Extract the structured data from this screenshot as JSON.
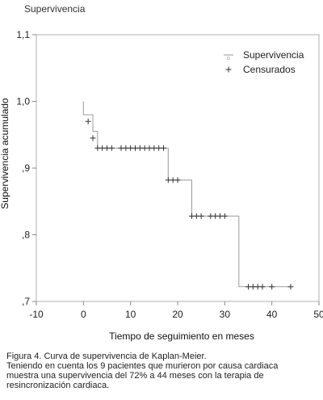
{
  "chart_data": {
    "type": "line",
    "title": "Supervivencia",
    "xlabel": "Tiempo de seguimiento en meses",
    "ylabel": "Supervivencia acumulado",
    "xlim": [
      -10,
      50
    ],
    "ylim": [
      0.7,
      1.1
    ],
    "x_ticks": [
      -10,
      0,
      10,
      20,
      30,
      40,
      50
    ],
    "x_tick_labels": [
      "-10",
      "0",
      "10",
      "20",
      "30",
      "40",
      "50"
    ],
    "y_ticks": [
      0.7,
      0.8,
      0.9,
      1.0,
      1.1
    ],
    "y_tick_labels": [
      ",7",
      ",8",
      ",9",
      "1,0",
      "1,1"
    ],
    "grid": false,
    "legend_position": "top-right",
    "series": [
      {
        "name": "Supervivencia",
        "kind": "step",
        "color": "#9a9a9a",
        "points": [
          [
            0,
            1.0
          ],
          [
            0,
            0.98
          ],
          [
            2,
            0.98
          ],
          [
            2,
            0.955
          ],
          [
            3,
            0.955
          ],
          [
            3,
            0.93
          ],
          [
            18,
            0.93
          ],
          [
            18,
            0.882
          ],
          [
            23,
            0.882
          ],
          [
            23,
            0.828
          ],
          [
            33,
            0.828
          ],
          [
            33,
            0.722
          ],
          [
            44,
            0.722
          ]
        ]
      },
      {
        "name": "Censurados",
        "kind": "marker",
        "marker": "+",
        "color": "#333333",
        "x": [
          1,
          2,
          3,
          4,
          5,
          6,
          8,
          9,
          10,
          11,
          12,
          13,
          14,
          15,
          16,
          17,
          18,
          19,
          20,
          23,
          24,
          25,
          27,
          28,
          29,
          30,
          35,
          36,
          37,
          38,
          40,
          44
        ],
        "y": [
          0.97,
          0.945,
          0.93,
          0.93,
          0.93,
          0.93,
          0.93,
          0.93,
          0.93,
          0.93,
          0.93,
          0.93,
          0.93,
          0.93,
          0.93,
          0.93,
          0.882,
          0.882,
          0.882,
          0.828,
          0.828,
          0.828,
          0.828,
          0.828,
          0.828,
          0.828,
          0.722,
          0.722,
          0.722,
          0.722,
          0.722,
          0.722
        ]
      }
    ]
  },
  "caption": {
    "line1": "Figura 4. Curva de supervivencia de Kaplan-Meier.",
    "line2": "Teniendo en cuenta los 9 pacientes que murieron por causa cardiaca",
    "line3": "muestra una supervivencia del 72% a 44 meses con la terapia de",
    "line4": "resincronización cardiaca."
  }
}
